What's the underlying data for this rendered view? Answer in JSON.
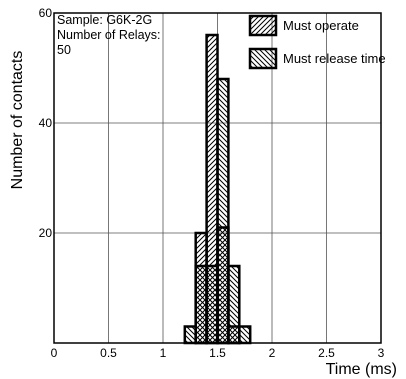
{
  "chart_data": {
    "type": "bar",
    "xlabel": "Time (ms)",
    "ylabel": "Number of contacts",
    "xlim": [
      0,
      3
    ],
    "ylim": [
      0,
      60
    ],
    "x_ticks": [
      0,
      0.5,
      1,
      1.5,
      2,
      2.5,
      3
    ],
    "x_tick_labels": [
      "0",
      "0.5",
      "1",
      "1.5",
      "2",
      "2.5",
      "3"
    ],
    "y_ticks": [
      20,
      40,
      60
    ],
    "y_tick_labels": [
      "20",
      "40",
      "60"
    ],
    "grid": true,
    "legend_position": "top-right",
    "annotation": [
      "Sample: G6K-2G",
      "Number of Relays:",
      "50"
    ],
    "bin_width": 0.1,
    "series": [
      {
        "name": "Must operate",
        "pattern": "diagonal-hatch",
        "bins": [
          {
            "x0": 1.3,
            "value": 20
          },
          {
            "x0": 1.4,
            "value": 56
          },
          {
            "x0": 1.5,
            "value": 21
          },
          {
            "x0": 1.6,
            "value": 3
          }
        ]
      },
      {
        "name": "Must release time",
        "pattern": "back-diagonal-hatch",
        "bins": [
          {
            "x0": 1.2,
            "value": 3
          },
          {
            "x0": 1.3,
            "value": 14
          },
          {
            "x0": 1.4,
            "value": 14
          },
          {
            "x0": 1.5,
            "value": 48
          },
          {
            "x0": 1.6,
            "value": 14
          },
          {
            "x0": 1.7,
            "value": 3
          }
        ]
      }
    ]
  },
  "colors": {
    "ink": "#000000",
    "grid": "#555555",
    "background": "#ffffff"
  }
}
